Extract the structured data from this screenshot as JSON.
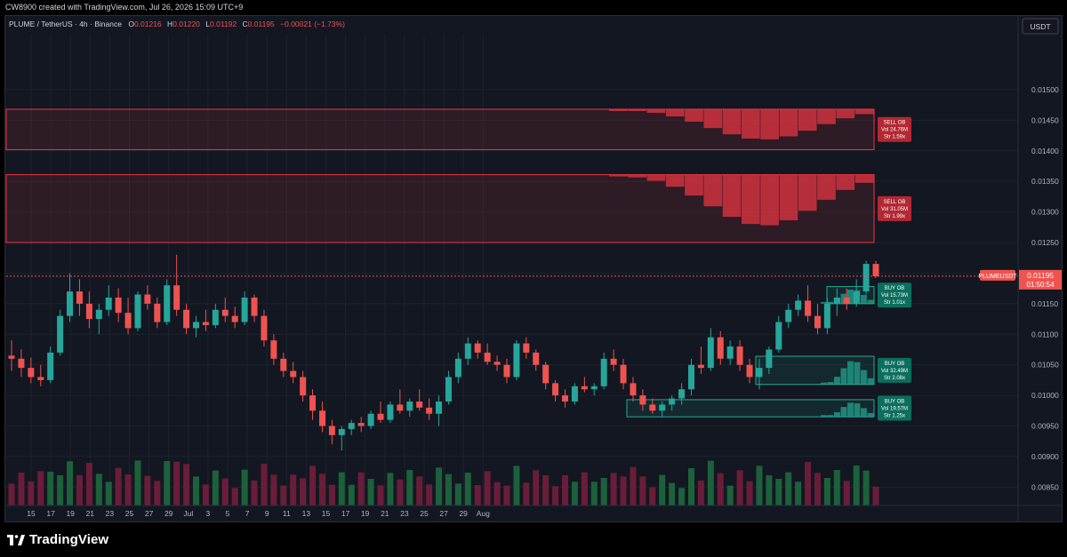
{
  "header": {
    "credit": "CW8900 created with TradingView.com, Jul 26, 2026 15:09 UTC+9"
  },
  "legend": {
    "symbol": "PLUME / TetherUS · 4h · Binance",
    "o_label": "O",
    "o": "0.01216",
    "h_label": "H",
    "h": "0.01220",
    "l_label": "L",
    "l": "0.01192",
    "c_label": "C",
    "c": "0.01195",
    "change": "−0.00021 (−1.73%)"
  },
  "footer": {
    "brand": "TradingView"
  },
  "colors": {
    "background": "#131722",
    "up": "#26a69a",
    "down": "#ef5350",
    "sell_zone": "#f23645",
    "buy_zone": "#22ab94",
    "grid": "#1e222d"
  },
  "chart_data": {
    "type": "candlestick",
    "title": "PLUME / TetherUS · 4h · Binance",
    "currency": "USDT",
    "ylim": [
      0.0082,
      0.0159
    ],
    "y_ticks": [
      "0.01500",
      "0.01450",
      "0.01400",
      "0.01350",
      "0.01300",
      "0.01250",
      "0.01200",
      "0.01150",
      "0.01100",
      "0.01050",
      "0.01000",
      "0.00950",
      "0.00900",
      "0.00850"
    ],
    "x_ticks": [
      "15",
      "17",
      "19",
      "21",
      "23",
      "25",
      "27",
      "29",
      "Jul",
      "3",
      "5",
      "7",
      "9",
      "11",
      "13",
      "15",
      "17",
      "19",
      "21",
      "23",
      "25",
      "27",
      "29",
      "Aug"
    ],
    "last_price": {
      "label": "PLUMEUSDT",
      "value": "0.01195",
      "countdown": "01:50:54"
    },
    "order_blocks": [
      {
        "type": "SELL OB",
        "top": 0.01468,
        "bottom": 0.01402,
        "vol": "Vol 24.76M",
        "str": "Str 1.59x"
      },
      {
        "type": "SELL OB",
        "top": 0.01361,
        "bottom": 0.0125,
        "vol": "Vol 31.05M",
        "str": "Str 1.99x"
      },
      {
        "type": "BUY OB",
        "top": 0.01178,
        "bottom": 0.0115,
        "vol": "Vol 15.73M",
        "str": "Str 1.01x"
      },
      {
        "type": "BUY OB",
        "top": 0.01064,
        "bottom": 0.01018,
        "vol": "Vol 32.49M",
        "str": "Str 2.08x"
      },
      {
        "type": "BUY OB",
        "top": 0.00993,
        "bottom": 0.00965,
        "vol": "Vol 19.57M",
        "str": "Str 1.25x"
      }
    ],
    "ohlc_blocks_t_o_h_l_c": [
      [
        0,
        0.01065,
        0.0109,
        0.0104,
        0.0106
      ],
      [
        1,
        0.0106,
        0.01075,
        0.0103,
        0.01045
      ],
      [
        2,
        0.01045,
        0.01062,
        0.0102,
        0.0103
      ],
      [
        3,
        0.0103,
        0.0105,
        0.01015,
        0.01025
      ],
      [
        4,
        0.01025,
        0.0108,
        0.0102,
        0.0107
      ],
      [
        5,
        0.0107,
        0.0114,
        0.01065,
        0.0113
      ],
      [
        6,
        0.0113,
        0.012,
        0.0112,
        0.0117
      ],
      [
        7,
        0.0117,
        0.0119,
        0.0113,
        0.0115
      ],
      [
        8,
        0.0115,
        0.0117,
        0.0111,
        0.01125
      ],
      [
        9,
        0.01125,
        0.0115,
        0.011,
        0.0114
      ],
      [
        10,
        0.0114,
        0.0118,
        0.0113,
        0.0116
      ],
      [
        11,
        0.0116,
        0.01175,
        0.0112,
        0.01135
      ],
      [
        12,
        0.01135,
        0.0116,
        0.011,
        0.0111
      ],
      [
        13,
        0.0111,
        0.0117,
        0.01105,
        0.01165
      ],
      [
        14,
        0.01165,
        0.0118,
        0.0114,
        0.0115
      ],
      [
        15,
        0.0115,
        0.0116,
        0.0111,
        0.0112
      ],
      [
        16,
        0.0112,
        0.0119,
        0.01115,
        0.0118
      ],
      [
        17,
        0.0118,
        0.0123,
        0.0113,
        0.0114
      ],
      [
        18,
        0.0114,
        0.0115,
        0.011,
        0.0111
      ],
      [
        19,
        0.0111,
        0.0113,
        0.01095,
        0.0112
      ],
      [
        20,
        0.0112,
        0.0114,
        0.01105,
        0.01115
      ],
      [
        21,
        0.01115,
        0.0115,
        0.0111,
        0.0114
      ],
      [
        22,
        0.0114,
        0.0116,
        0.0112,
        0.0113
      ],
      [
        23,
        0.0113,
        0.01145,
        0.0111,
        0.0112
      ],
      [
        24,
        0.0112,
        0.0117,
        0.01115,
        0.0116
      ],
      [
        25,
        0.0116,
        0.01165,
        0.0112,
        0.0113
      ],
      [
        26,
        0.0113,
        0.0114,
        0.0108,
        0.0109
      ],
      [
        27,
        0.0109,
        0.011,
        0.0105,
        0.0106
      ],
      [
        28,
        0.0106,
        0.0107,
        0.0103,
        0.0104
      ],
      [
        29,
        0.0104,
        0.01055,
        0.0102,
        0.0103
      ],
      [
        30,
        0.0103,
        0.0104,
        0.0099,
        0.01
      ],
      [
        31,
        0.01,
        0.0101,
        0.0096,
        0.00975
      ],
      [
        32,
        0.00975,
        0.0099,
        0.0094,
        0.0095
      ],
      [
        33,
        0.0095,
        0.0096,
        0.0092,
        0.00935
      ],
      [
        34,
        0.00935,
        0.0095,
        0.0091,
        0.00945
      ],
      [
        35,
        0.00945,
        0.0096,
        0.00935,
        0.00955
      ],
      [
        36,
        0.00955,
        0.00965,
        0.0094,
        0.0095
      ],
      [
        37,
        0.0095,
        0.00975,
        0.00945,
        0.0097
      ],
      [
        38,
        0.0097,
        0.0099,
        0.00955,
        0.0096
      ],
      [
        39,
        0.0096,
        0.0099,
        0.00955,
        0.00985
      ],
      [
        40,
        0.00985,
        0.0101,
        0.0097,
        0.00975
      ],
      [
        41,
        0.00975,
        0.00995,
        0.00965,
        0.0099
      ],
      [
        42,
        0.0099,
        0.0101,
        0.00975,
        0.0098
      ],
      [
        43,
        0.0098,
        0.00995,
        0.0096,
        0.0097
      ],
      [
        44,
        0.0097,
        0.01,
        0.0095,
        0.0099
      ],
      [
        45,
        0.0099,
        0.0104,
        0.00985,
        0.0103
      ],
      [
        46,
        0.0103,
        0.0107,
        0.0102,
        0.0106
      ],
      [
        47,
        0.0106,
        0.01095,
        0.0105,
        0.01085
      ],
      [
        48,
        0.01085,
        0.0109,
        0.0106,
        0.0107
      ],
      [
        49,
        0.0107,
        0.01085,
        0.0105,
        0.01055
      ],
      [
        50,
        0.01055,
        0.01065,
        0.0104,
        0.0105
      ],
      [
        51,
        0.0105,
        0.0106,
        0.0102,
        0.0103
      ],
      [
        52,
        0.0103,
        0.0109,
        0.01025,
        0.01085
      ],
      [
        53,
        0.01085,
        0.01095,
        0.0106,
        0.0107
      ],
      [
        54,
        0.0107,
        0.01075,
        0.0104,
        0.0105
      ],
      [
        55,
        0.0105,
        0.01055,
        0.0101,
        0.0102
      ],
      [
        56,
        0.0102,
        0.01025,
        0.0099,
        0.01
      ],
      [
        57,
        0.01,
        0.0101,
        0.0098,
        0.0099
      ],
      [
        58,
        0.0099,
        0.0102,
        0.00985,
        0.01015
      ],
      [
        59,
        0.01015,
        0.0103,
        0.01005,
        0.0101
      ],
      [
        60,
        0.0101,
        0.0102,
        0.01,
        0.01015
      ],
      [
        61,
        0.01015,
        0.0107,
        0.0101,
        0.0106
      ],
      [
        62,
        0.0106,
        0.01075,
        0.0104,
        0.0105
      ],
      [
        63,
        0.0105,
        0.0106,
        0.0101,
        0.0102
      ],
      [
        64,
        0.0102,
        0.0103,
        0.0099,
        0.01
      ],
      [
        65,
        0.01,
        0.0101,
        0.00975,
        0.00985
      ],
      [
        66,
        0.00985,
        0.00995,
        0.0097,
        0.00975
      ],
      [
        67,
        0.00975,
        0.0099,
        0.00965,
        0.00985
      ],
      [
        68,
        0.00985,
        0.01,
        0.00975,
        0.00995
      ],
      [
        69,
        0.00995,
        0.0102,
        0.00985,
        0.0101
      ],
      [
        70,
        0.0101,
        0.0106,
        0.01,
        0.0105
      ],
      [
        71,
        0.0105,
        0.0108,
        0.01035,
        0.01045
      ],
      [
        72,
        0.01045,
        0.0111,
        0.0104,
        0.01095
      ],
      [
        73,
        0.01095,
        0.01105,
        0.0105,
        0.0106
      ],
      [
        74,
        0.0106,
        0.0109,
        0.0105,
        0.0108
      ],
      [
        75,
        0.0108,
        0.0109,
        0.0104,
        0.0105
      ],
      [
        76,
        0.0105,
        0.0106,
        0.0102,
        0.0103
      ],
      [
        77,
        0.0103,
        0.0106,
        0.0101,
        0.01045
      ],
      [
        78,
        0.01045,
        0.0108,
        0.01035,
        0.01075
      ],
      [
        79,
        0.01075,
        0.0113,
        0.0107,
        0.0112
      ],
      [
        80,
        0.0112,
        0.0115,
        0.0111,
        0.0114
      ],
      [
        81,
        0.0114,
        0.01165,
        0.0113,
        0.01155
      ],
      [
        82,
        0.01155,
        0.0118,
        0.0112,
        0.0113
      ],
      [
        83,
        0.0113,
        0.0115,
        0.011,
        0.0111
      ],
      [
        84,
        0.0111,
        0.0116,
        0.011,
        0.0115
      ],
      [
        85,
        0.0115,
        0.01175,
        0.0113,
        0.0116
      ],
      [
        86,
        0.0116,
        0.01175,
        0.0114,
        0.0115
      ],
      [
        87,
        0.0115,
        0.0119,
        0.01145,
        0.0117
      ],
      [
        88,
        0.0117,
        0.0122,
        0.01165,
        0.01215
      ],
      [
        89,
        0.01215,
        0.0122,
        0.01192,
        0.01195
      ]
    ]
  }
}
